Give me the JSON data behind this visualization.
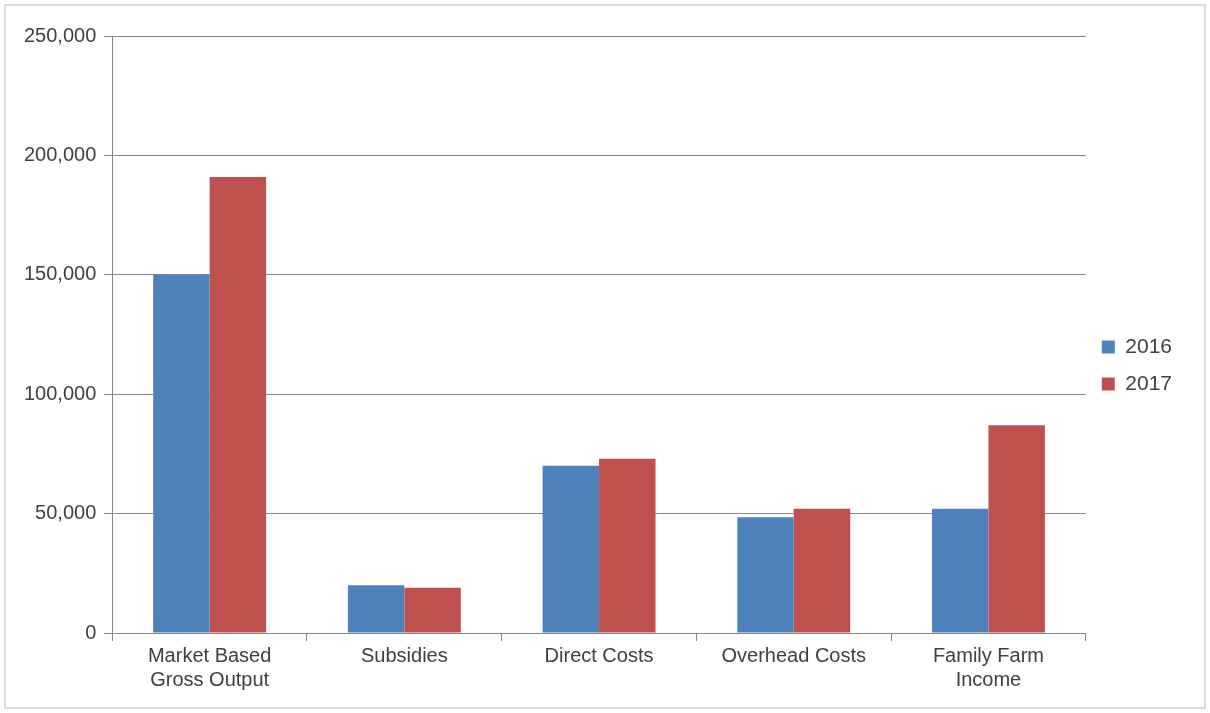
{
  "chart_data": {
    "type": "bar",
    "categories": [
      "Market Based Gross Output",
      "Subsidies",
      "Direct Costs",
      "Overhead Costs",
      "Family Farm Income"
    ],
    "series": [
      {
        "name": "2016",
        "color": "#4f81bd",
        "values": [
          150000,
          20000,
          70000,
          48500,
          52000
        ]
      },
      {
        "name": "2017",
        "color": "#c0504d",
        "values": [
          191000,
          19000,
          73000,
          52000,
          87000
        ]
      }
    ],
    "ylim": [
      0,
      250000
    ],
    "yticks": [
      {
        "value": 0,
        "label": "0"
      },
      {
        "value": 50000,
        "label": "50,000"
      },
      {
        "value": 100000,
        "label": "100,000"
      },
      {
        "value": 150000,
        "label": "150,000"
      },
      {
        "value": 200000,
        "label": "200,000"
      },
      {
        "value": 250000,
        "label": "250,000"
      }
    ],
    "grid": "y",
    "legend": "right"
  }
}
